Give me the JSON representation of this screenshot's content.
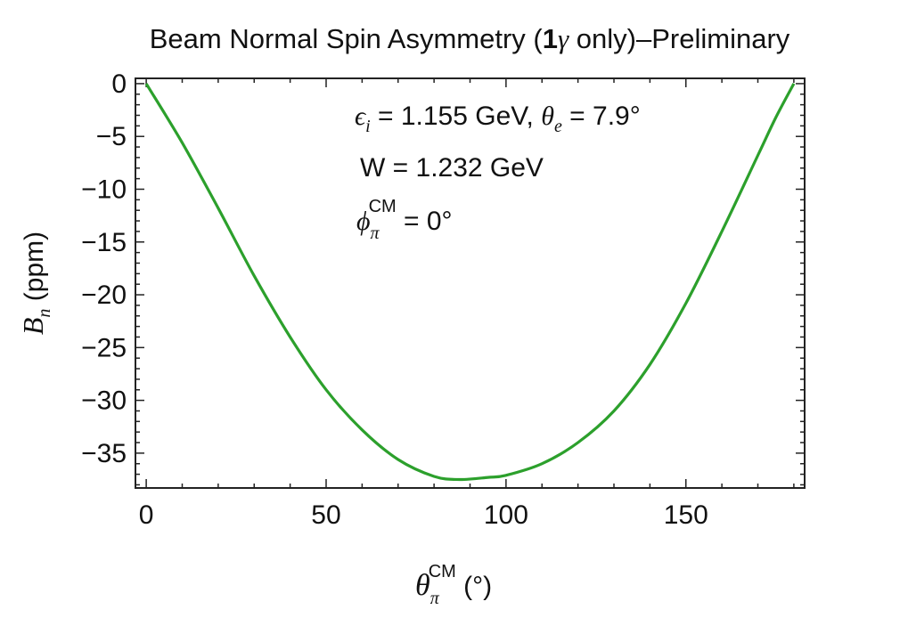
{
  "chart_data": {
    "type": "line",
    "title": {
      "main": "Beam Normal Spin Asymmetry ",
      "paren_open": "(",
      "gamma_num": "1",
      "gamma": "γ",
      "paren_rest": " only)",
      "suffix": "–Preliminary"
    },
    "xlabel": {
      "symbol": "θ",
      "sub": "π",
      "sup": "CM",
      "unit": " (°)"
    },
    "ylabel": {
      "symbol": "B",
      "sub": "n",
      "unit": " (ppm)"
    },
    "xlim": [
      -3,
      183
    ],
    "ylim": [
      -38.3,
      0.5
    ],
    "xticks_major": [
      0,
      50,
      100,
      150
    ],
    "xtick_labels": [
      "0",
      "50",
      "100",
      "150"
    ],
    "xticks_minor_step": 10,
    "yticks_major": [
      0,
      -5,
      -10,
      -15,
      -20,
      -25,
      -30,
      -35
    ],
    "ytick_labels": [
      "0",
      "−5",
      "−10",
      "−15",
      "−20",
      "−25",
      "−30",
      "−35"
    ],
    "yticks_minor_step": 1,
    "grid": false,
    "annotations": {
      "line1": {
        "eps": "ϵ",
        "eps_sub": "i",
        "eps_val": " = 1.155 GeV,  ",
        "theta": "θ",
        "theta_sub": "e",
        "theta_val": " = 7.9°"
      },
      "line2": "W = 1.232 GeV",
      "line3": {
        "phi": "ϕ",
        "sub": "π",
        "sup": "CM",
        "val": " = 0°"
      }
    },
    "series": [
      {
        "color": "#2ca02c",
        "x": [
          0,
          10,
          20,
          30,
          40,
          50,
          60,
          70,
          80,
          87,
          95,
          100,
          110,
          120,
          130,
          140,
          150,
          160,
          170,
          175,
          180
        ],
        "y": [
          0,
          -5.6,
          -11.8,
          -18.2,
          -24.0,
          -29.0,
          -32.8,
          -35.6,
          -37.2,
          -37.5,
          -37.3,
          -37.1,
          -36.0,
          -34.0,
          -31.0,
          -26.6,
          -20.8,
          -14.0,
          -6.8,
          -3.2,
          0
        ]
      }
    ]
  }
}
